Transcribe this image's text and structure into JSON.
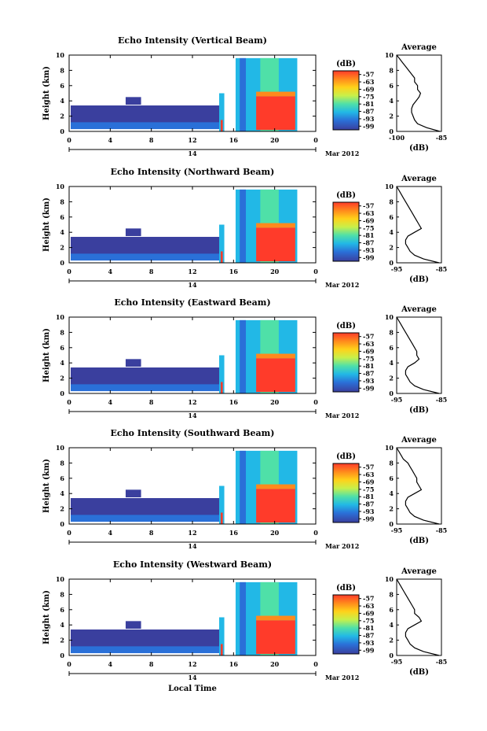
{
  "chart_data": [
    {
      "type": "heatmap",
      "title": "Echo Intensity (Vertical Beam)",
      "ylabel": "Height (km)",
      "yticks": [
        "0",
        "2",
        "4",
        "6",
        "8",
        "10"
      ],
      "xticks": [
        "0",
        "4",
        "8",
        "12",
        "16",
        "20",
        "0"
      ],
      "date_label": "14",
      "month_label": "Mar 2012",
      "colorbar_unit": "(dB)",
      "colorbar_ticks": [
        "-57",
        "-63",
        "-69",
        "-75",
        "-81",
        "-87",
        "-93",
        "-99"
      ],
      "avg_title": "Average",
      "avg_xticks": [
        "-100",
        "-85"
      ],
      "avg_xlabel": "(dB)",
      "avg_yticks": [
        "0",
        "2",
        "4",
        "6",
        "8",
        "10"
      ],
      "avg_xlim": [
        -100,
        -85
      ],
      "average_profile": {
        "height_km": [
          0,
          0.5,
          1,
          1.5,
          2,
          2.5,
          3,
          3.5,
          4,
          4.5,
          5,
          5.5,
          6,
          6.5,
          7,
          7.5,
          8,
          8.5,
          9,
          9.5,
          10
        ],
        "db": [
          -85.5,
          -90,
          -93,
          -94,
          -94.5,
          -95,
          -95,
          -94.5,
          -93.5,
          -92.5,
          -92,
          -93,
          -93,
          -94,
          -94,
          -95,
          -96,
          -97,
          -98,
          -99,
          -100
        ]
      }
    },
    {
      "type": "heatmap",
      "title": "Echo Intensity (Northward Beam)",
      "ylabel": "Height (km)",
      "yticks": [
        "0",
        "2",
        "4",
        "6",
        "8",
        "10"
      ],
      "xticks": [
        "0",
        "4",
        "8",
        "12",
        "16",
        "20",
        "0"
      ],
      "date_label": "14",
      "month_label": "Mar 2012",
      "colorbar_unit": "(dB)",
      "colorbar_ticks": [
        "-57",
        "-63",
        "-69",
        "-75",
        "-81",
        "-87",
        "-93",
        "-99"
      ],
      "avg_title": "Average",
      "avg_xticks": [
        "-95",
        "-85"
      ],
      "avg_xlabel": "(dB)",
      "avg_yticks": [
        "0",
        "2",
        "4",
        "6",
        "8",
        "10"
      ],
      "avg_xlim": [
        -95,
        -85
      ],
      "average_profile": {
        "height_km": [
          0,
          0.5,
          1,
          1.5,
          2,
          2.5,
          3,
          3.5,
          4,
          4.5,
          5,
          5.5,
          6,
          6.5,
          7,
          7.5,
          8,
          8.5,
          9,
          9.5,
          10
        ],
        "db": [
          -85.5,
          -89,
          -91,
          -92,
          -92.5,
          -93,
          -93,
          -92.5,
          -91,
          -89.5,
          -90,
          -90.5,
          -91,
          -91.5,
          -92,
          -92.5,
          -93,
          -93.5,
          -94,
          -94.5,
          -95
        ]
      }
    },
    {
      "type": "heatmap",
      "title": "Echo Intensity (Eastward Beam)",
      "ylabel": "Height (km)",
      "yticks": [
        "0",
        "2",
        "4",
        "6",
        "8",
        "10"
      ],
      "xticks": [
        "0",
        "4",
        "8",
        "12",
        "16",
        "20",
        "0"
      ],
      "date_label": "14",
      "month_label": "Mar 2012",
      "colorbar_unit": "(dB)",
      "colorbar_ticks": [
        "-57",
        "-63",
        "-69",
        "-75",
        "-81",
        "-87",
        "-93",
        "-99"
      ],
      "avg_title": "Average",
      "avg_xticks": [
        "-95",
        "-85"
      ],
      "avg_xlabel": "(dB)",
      "avg_yticks": [
        "0",
        "2",
        "4",
        "6",
        "8",
        "10"
      ],
      "avg_xlim": [
        -95,
        -85
      ],
      "average_profile": {
        "height_km": [
          0,
          0.5,
          1,
          1.5,
          2,
          2.5,
          3,
          3.5,
          4,
          4.5,
          5,
          5.5,
          6,
          6.5,
          7,
          7.5,
          8,
          8.5,
          9,
          9.5,
          10
        ],
        "db": [
          -85.5,
          -89,
          -91,
          -92,
          -92.5,
          -93,
          -93,
          -92.5,
          -91,
          -90,
          -90.5,
          -90.5,
          -91,
          -91.5,
          -92,
          -92.5,
          -93,
          -93.5,
          -94,
          -94.5,
          -95
        ]
      }
    },
    {
      "type": "heatmap",
      "title": "Echo Intensity (Southward Beam)",
      "ylabel": "Height (km)",
      "yticks": [
        "0",
        "2",
        "4",
        "6",
        "8",
        "10"
      ],
      "xticks": [
        "0",
        "4",
        "8",
        "12",
        "16",
        "20",
        "0"
      ],
      "date_label": "14",
      "month_label": "Mar 2012",
      "colorbar_unit": "(dB)",
      "colorbar_ticks": [
        "-57",
        "-63",
        "-69",
        "-75",
        "-81",
        "-87",
        "-93",
        "-99"
      ],
      "avg_title": "Average",
      "avg_xticks": [
        "-95",
        "-85"
      ],
      "avg_xlabel": "(dB)",
      "avg_yticks": [
        "0",
        "2",
        "4",
        "6",
        "8",
        "10"
      ],
      "avg_xlim": [
        -95,
        -85
      ],
      "average_profile": {
        "height_km": [
          0,
          0.5,
          1,
          1.5,
          2,
          2.5,
          3,
          3.5,
          4,
          4.5,
          5,
          5.5,
          6,
          6.5,
          7,
          7.5,
          8,
          8.5,
          9,
          9.5,
          10
        ],
        "db": [
          -85.5,
          -89,
          -91,
          -92,
          -92.5,
          -93,
          -93,
          -92.5,
          -91,
          -89.5,
          -90,
          -90.5,
          -90.5,
          -91,
          -91.5,
          -92,
          -92.5,
          -93.5,
          -94,
          -94.5,
          -95
        ]
      }
    },
    {
      "type": "heatmap",
      "title": "Echo Intensity (Westward Beam)",
      "ylabel": "Height (km)",
      "yticks": [
        "0",
        "2",
        "4",
        "6",
        "8",
        "10"
      ],
      "xticks": [
        "0",
        "4",
        "8",
        "12",
        "16",
        "20",
        "0"
      ],
      "date_label": "14",
      "month_label": "Mar 2012",
      "colorbar_unit": "(dB)",
      "colorbar_ticks": [
        "-57",
        "-63",
        "-69",
        "-75",
        "-81",
        "-87",
        "-93",
        "-99"
      ],
      "avg_title": "Average",
      "avg_xticks": [
        "-95",
        "-85"
      ],
      "avg_xlabel": "(dB)",
      "avg_yticks": [
        "0",
        "2",
        "4",
        "6",
        "8",
        "10"
      ],
      "avg_xlim": [
        -95,
        -85
      ],
      "average_profile": {
        "height_km": [
          0,
          0.5,
          1,
          1.5,
          2,
          2.5,
          3,
          3.5,
          4,
          4.5,
          5,
          5.5,
          6,
          6.5,
          7,
          7.5,
          8,
          8.5,
          9,
          9.5,
          10
        ],
        "db": [
          -85.5,
          -89,
          -91,
          -92,
          -92.5,
          -93,
          -93,
          -92.5,
          -91,
          -89.5,
          -90,
          -91,
          -91,
          -91.5,
          -92,
          -92.5,
          -93,
          -93.5,
          -94,
          -94.5,
          -95
        ]
      }
    }
  ],
  "xlabel": "Local Time",
  "colorbar_colors": [
    "#ff3b2a",
    "#ff8a1c",
    "#ffd21a",
    "#c8f04a",
    "#4fe0a8",
    "#22b8e6",
    "#2a70d8",
    "#3a3f9e"
  ]
}
